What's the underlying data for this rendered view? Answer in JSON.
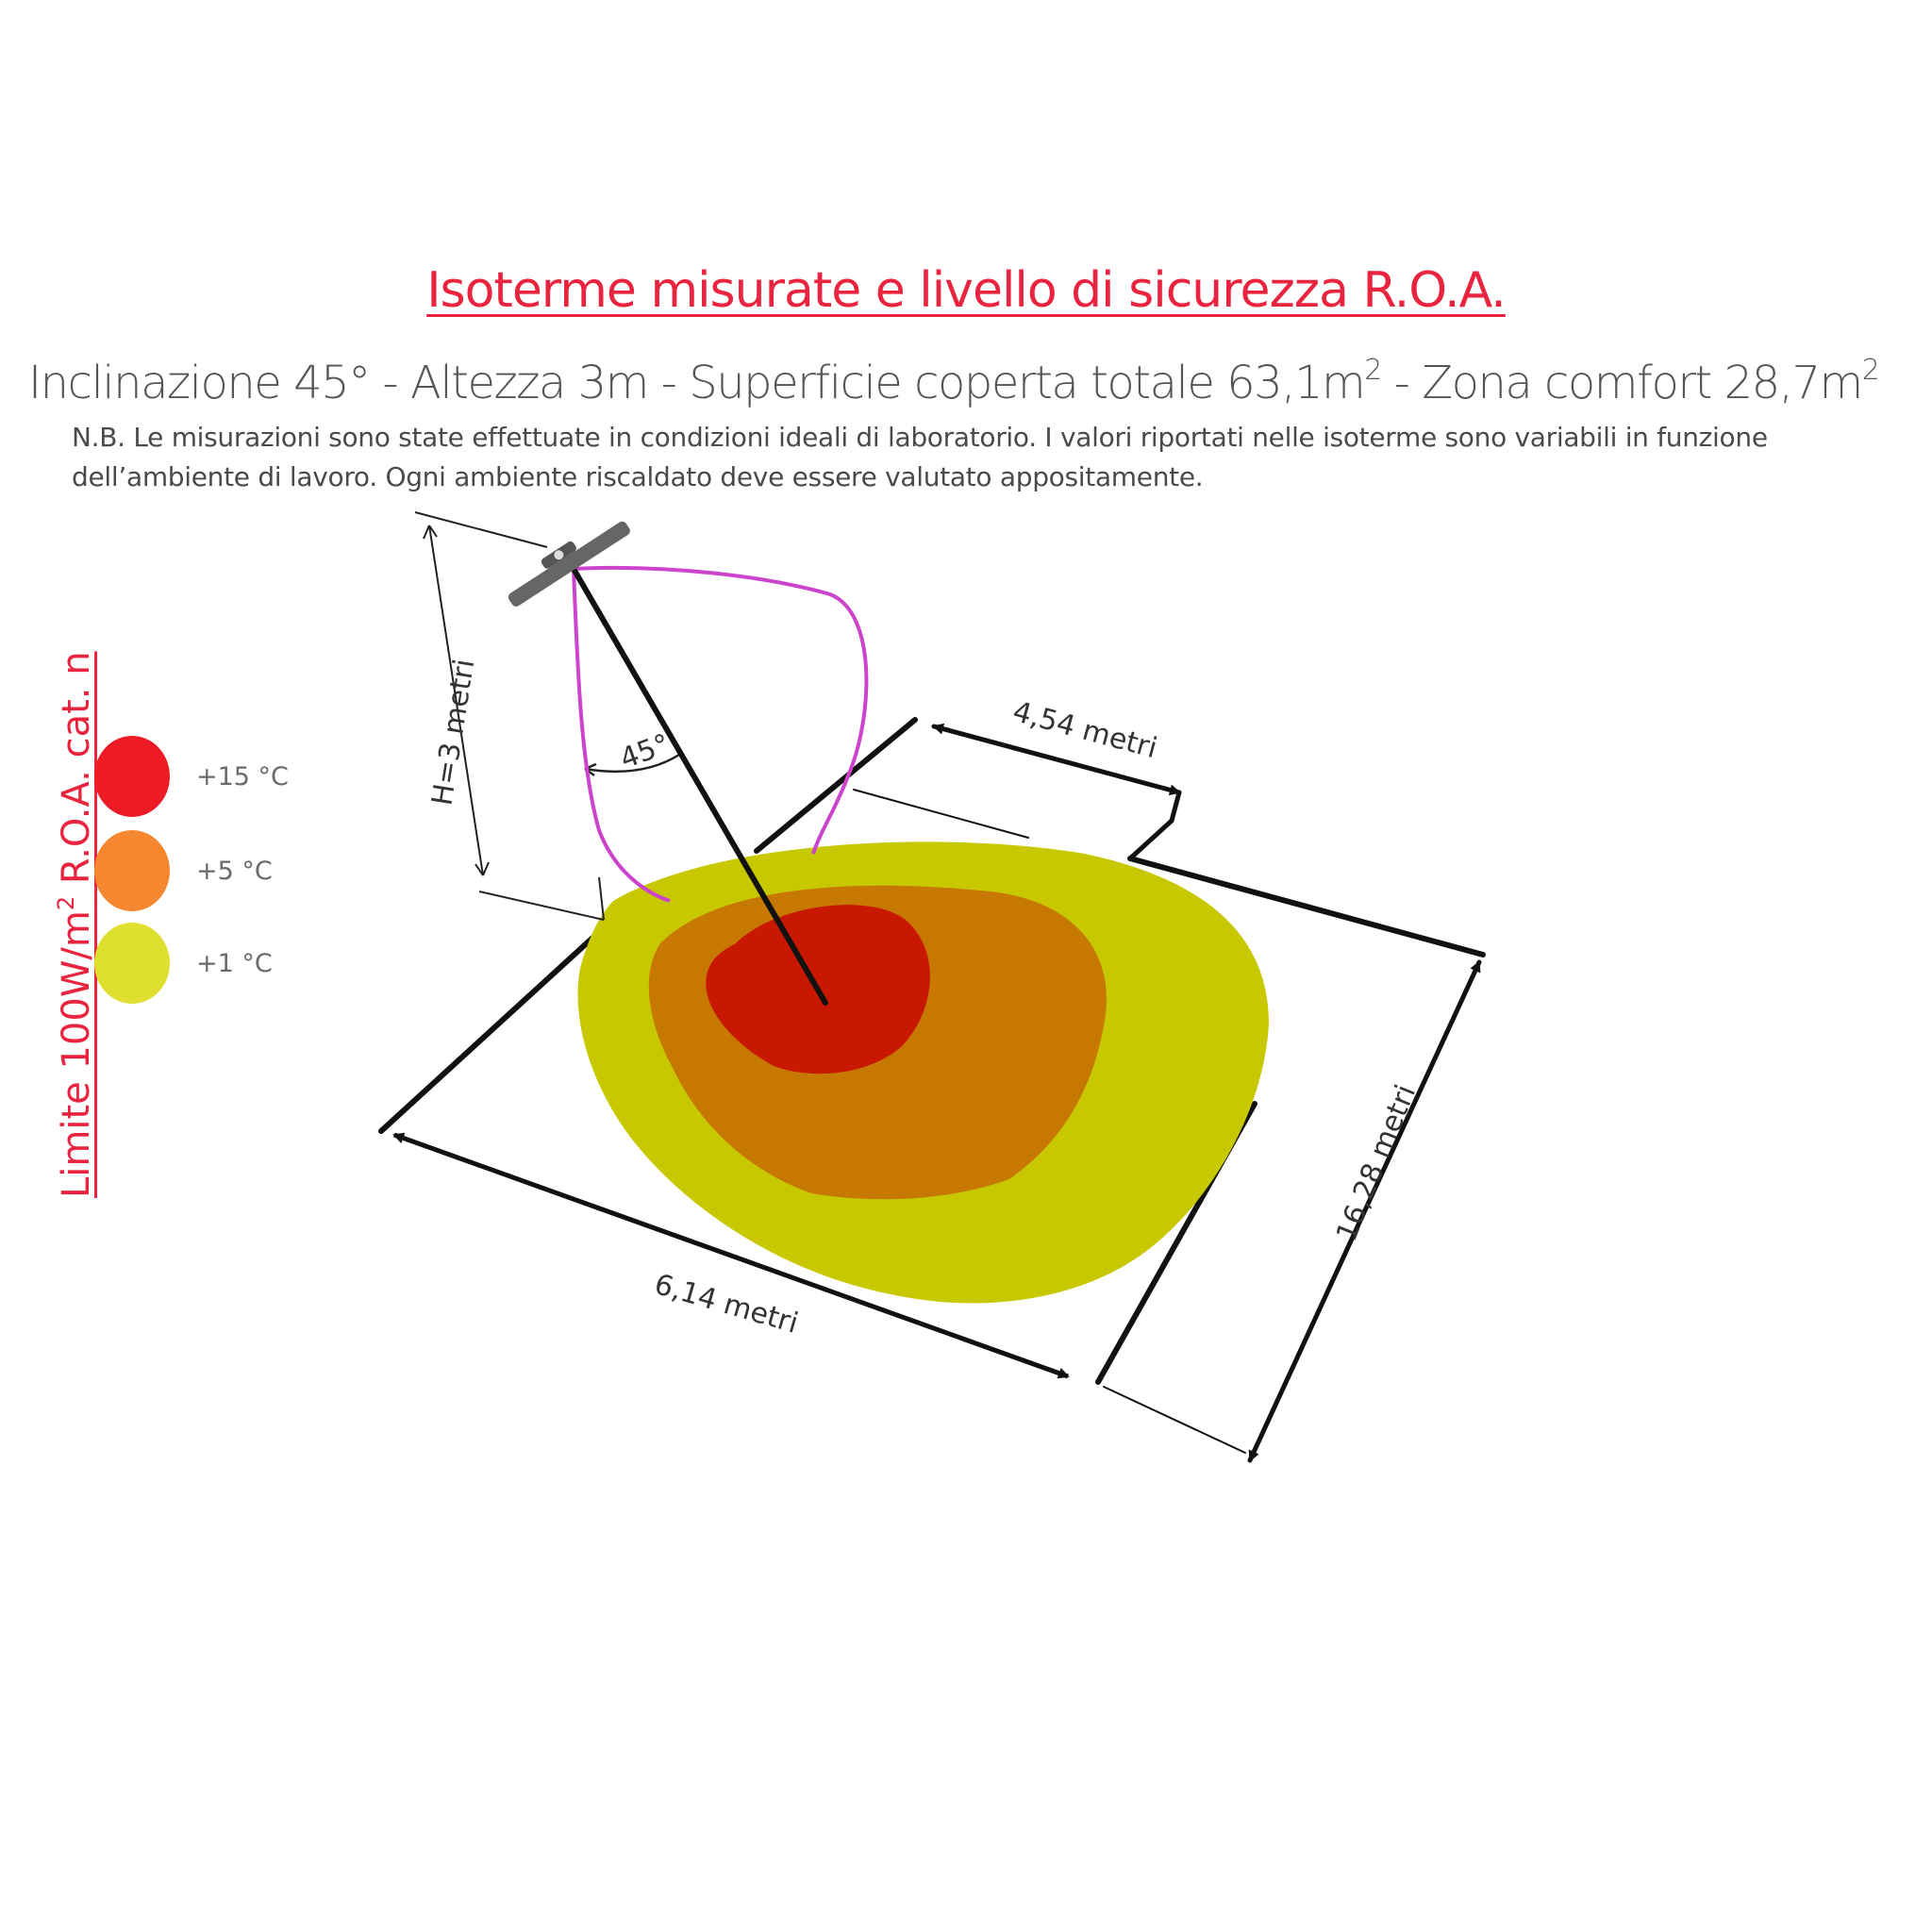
{
  "title": "Isoterme misurate e livello di sicurezza R.O.A.",
  "subtitle": {
    "part1": "Inclinazione 45° - Altezza 3m - Superficie coperta totale 63,1m",
    "sup1": "2",
    "part2": " - Zona comfort 28,7m",
    "sup2": "2"
  },
  "note": "N.B. Le misurazioni sono state effettuate in condizioni ideali di laboratorio. I valori riportati nelle isoterme sono variabili in funzione dell’ambiente di lavoro. Ogni ambiente riscaldato deve essere valutato appositamente.",
  "side_label": {
    "part1": "Limite 100W/m",
    "sup": "2",
    "part2": " R.O.A. cat. n"
  },
  "legend": [
    {
      "label": "+15 °C",
      "color": "#ed1c24"
    },
    {
      "label": "+5 °C",
      "color": "#f4872f"
    },
    {
      "label": "+1 °C",
      "color": "#dfdf30"
    }
  ],
  "diagram": {
    "height_label": "H=3 metri",
    "angle_label": "45°",
    "top_width_label": "4,54 metri",
    "bottom_width_label": "6,14 metri",
    "depth_label": "16,28 metri",
    "zone_colors": {
      "outer": "#c8c800",
      "middle": "#c77800",
      "inner": "#c81800",
      "beam": "#cc44cc"
    }
  }
}
